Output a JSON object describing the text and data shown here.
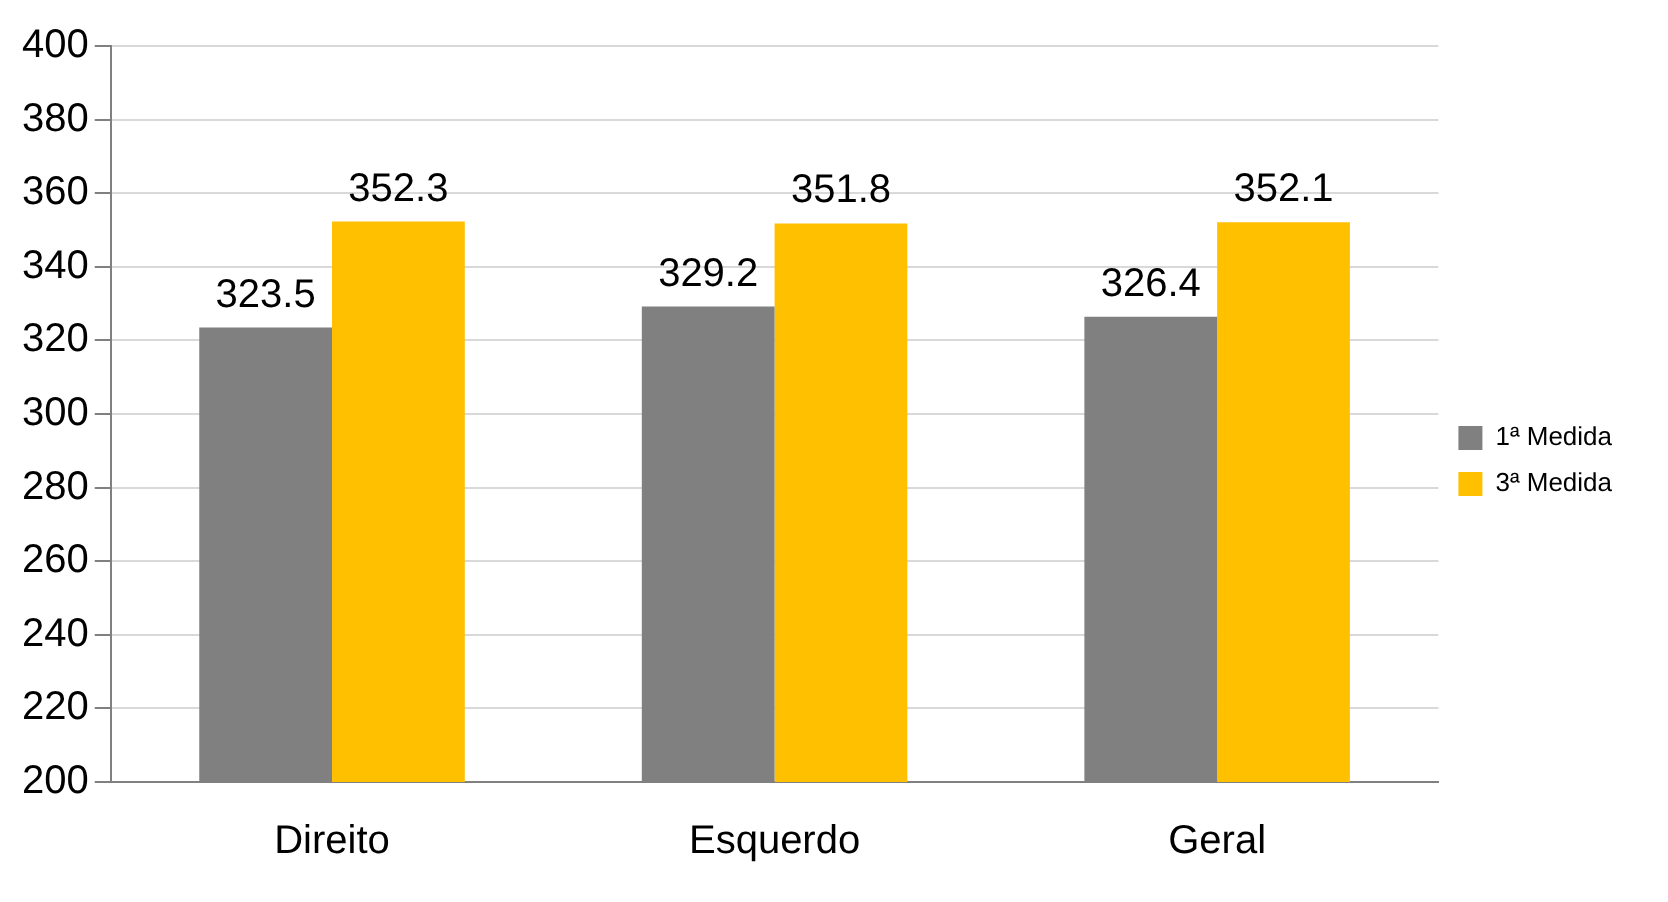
{
  "chart_data": {
    "type": "bar",
    "categories": [
      "Direito",
      "Esquerdo",
      "Geral"
    ],
    "series": [
      {
        "name": "1ª Medida",
        "color": "#808080",
        "values": [
          323.5,
          329.2,
          326.4
        ]
      },
      {
        "name": "3ª Medida",
        "color": "#ffc000",
        "values": [
          352.3,
          351.8,
          352.1
        ]
      }
    ],
    "ylim": [
      200,
      400
    ],
    "yticks": [
      200,
      220,
      240,
      260,
      280,
      300,
      320,
      340,
      360,
      380,
      400
    ],
    "grid": "y",
    "legend": "right",
    "data_labels": true
  }
}
